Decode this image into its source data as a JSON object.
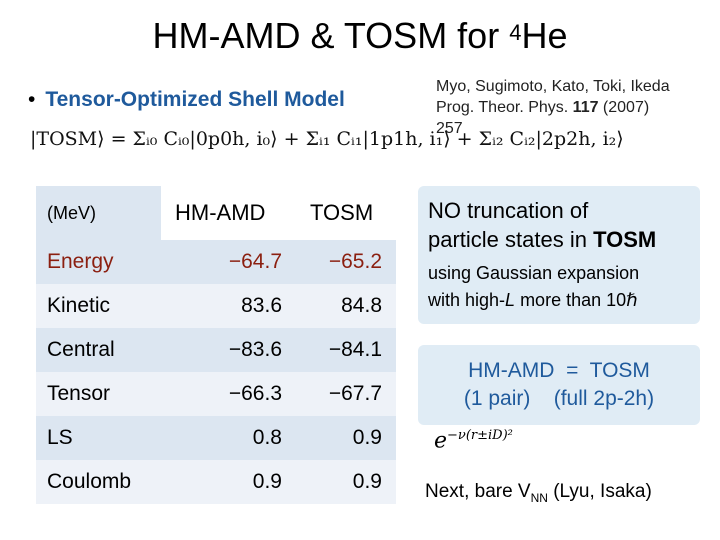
{
  "title": {
    "text": "HM-AMD & TOSM for ",
    "sup": "4",
    "tail": "He"
  },
  "bullet": {
    "dot": "•",
    "text": "Tensor-Optimized Shell Model"
  },
  "reference": {
    "line1": "Myo, Sugimoto, Kato, Toki, Ikeda",
    "line2_prefix": "Prog. Theor. Phys. ",
    "volume": "117",
    "line2_suffix": " (2007)",
    "line3": "257"
  },
  "formula": "|TOSM⟩ = Σᵢ₀ Cᵢ₀|0p0h, i₀⟩ + Σᵢ₁ Cᵢ₁|1p1h, i₁⟩ + Σᵢ₂ Cᵢ₂|2p2h, i₂⟩",
  "table": {
    "header": {
      "unit": "(MeV)",
      "col1": "HM-AMD",
      "col2": "TOSM"
    },
    "rows": [
      {
        "label": "Energy",
        "hmamd": "−64.7",
        "tosm": "−65.2"
      },
      {
        "label": "Kinetic",
        "hmamd": "83.6",
        "tosm": "84.8"
      },
      {
        "label": "Central",
        "hmamd": "−83.6",
        "tosm": "−84.1"
      },
      {
        "label": "Tensor",
        "hmamd": "−66.3",
        "tosm": "−67.7"
      },
      {
        "label": "LS",
        "hmamd": "0.8",
        "tosm": "0.9"
      },
      {
        "label": "Coulomb",
        "hmamd": "0.9",
        "tosm": "0.9"
      }
    ]
  },
  "note1": {
    "line1": "NO truncation of",
    "line2_prefix": "particle states in ",
    "line2_bold": "TOSM",
    "line3": "using Gaussian expansion",
    "line4_prefix": "with high-",
    "line4_italic": "L",
    "line4_suffix": " more than 10ℏ"
  },
  "note2": {
    "line1": "HM-AMD  =  TOSM",
    "line2": "(1 pair)    (full 2p-2h)"
  },
  "gaussian": {
    "base": "e",
    "exponent": "−ν(r±iD)²"
  },
  "next": {
    "prefix": "Next, bare V",
    "sub": "NN",
    "suffix": " (Lyu, Isaka)"
  },
  "colors": {
    "accent_blue": "#1f5a9c",
    "energy_red": "#8b1f10",
    "box_bg": "#e0ecf5"
  }
}
